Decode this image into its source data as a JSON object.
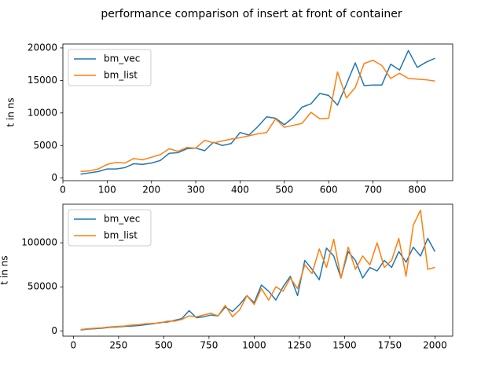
{
  "title": "performance comparison of insert at front of container",
  "chart_data": [
    {
      "type": "line",
      "y_label": "t in ns",
      "legend": "upper left",
      "x": [
        40,
        60,
        80,
        100,
        120,
        140,
        160,
        180,
        200,
        220,
        240,
        260,
        280,
        300,
        320,
        340,
        360,
        380,
        400,
        420,
        440,
        460,
        480,
        500,
        520,
        540,
        560,
        580,
        600,
        620,
        640,
        660,
        680,
        700,
        720,
        740,
        760,
        780,
        800,
        820,
        840
      ],
      "series": [
        {
          "name": "bm_vec",
          "color": "#1f77b4",
          "values": [
            600,
            800,
            1000,
            1400,
            1400,
            1600,
            2200,
            2100,
            2300,
            2700,
            3800,
            3900,
            4500,
            4600,
            4200,
            5500,
            5000,
            5300,
            7000,
            6600,
            7900,
            9400,
            9200,
            8200,
            9300,
            10900,
            11400,
            13000,
            12700,
            11200,
            14400,
            17700,
            14200,
            14300,
            14300,
            17500,
            16600,
            19600,
            17000,
            17800,
            18400
          ]
        },
        {
          "name": "bm_list",
          "color": "#ff7f0e",
          "values": [
            1000,
            1100,
            1400,
            2100,
            2400,
            2300,
            3000,
            2800,
            3200,
            3600,
            4500,
            4100,
            4700,
            4600,
            5800,
            5400,
            5700,
            6000,
            6200,
            6500,
            6800,
            7000,
            9100,
            7800,
            8100,
            8400,
            10100,
            9100,
            9200,
            16300,
            12300,
            13900,
            17600,
            18100,
            17300,
            15300,
            16100,
            15300,
            15200,
            15100,
            14900
          ]
        }
      ],
      "xlim": [
        0,
        880
      ],
      "xticks": [
        0,
        100,
        200,
        300,
        400,
        500,
        600,
        700,
        800
      ],
      "ylim": [
        -400,
        20600
      ],
      "yticks": [
        0,
        5000,
        10000,
        15000,
        20000
      ]
    },
    {
      "type": "line",
      "y_label": "t in ns",
      "legend": "upper left",
      "x": [
        40,
        80,
        120,
        160,
        200,
        240,
        280,
        320,
        360,
        400,
        440,
        480,
        520,
        560,
        600,
        640,
        680,
        720,
        760,
        800,
        840,
        880,
        920,
        960,
        1000,
        1040,
        1080,
        1120,
        1160,
        1200,
        1240,
        1280,
        1320,
        1360,
        1400,
        1440,
        1480,
        1520,
        1560,
        1600,
        1640,
        1680,
        1720,
        1760,
        1800,
        1840,
        1880,
        1920,
        1960,
        2000
      ],
      "series": [
        {
          "name": "bm_vec",
          "color": "#1f77b4",
          "values": [
            1000,
            2000,
            2500,
            3000,
            4000,
            4500,
            5000,
            5500,
            6000,
            7000,
            8000,
            9500,
            10000,
            12000,
            14000,
            23000,
            15000,
            16000,
            18000,
            17000,
            27000,
            22000,
            30000,
            40000,
            32000,
            52000,
            45000,
            35000,
            50000,
            62000,
            40000,
            80000,
            70000,
            58000,
            94000,
            85000,
            60000,
            90000,
            80000,
            60000,
            72000,
            68000,
            80000,
            72000,
            90000,
            78000,
            95000,
            85000,
            105000,
            90000
          ]
        },
        {
          "name": "bm_list",
          "color": "#ff7f0e",
          "values": [
            1500,
            2500,
            3000,
            3500,
            4500,
            5000,
            5500,
            6500,
            7000,
            8000,
            8500,
            9000,
            11000,
            11000,
            13000,
            17000,
            16000,
            18000,
            20000,
            17000,
            29000,
            16000,
            24000,
            40000,
            30000,
            48000,
            35000,
            50000,
            45000,
            60000,
            48000,
            75000,
            65000,
            93000,
            72000,
            104000,
            60000,
            95000,
            70000,
            85000,
            75000,
            100000,
            72000,
            80000,
            105000,
            62000,
            120000,
            137000,
            70000,
            72000
          ]
        }
      ],
      "xlim": [
        -58,
        2098
      ],
      "xticks": [
        0,
        250,
        500,
        750,
        1000,
        1250,
        1500,
        1750,
        2000
      ],
      "ylim": [
        -6000,
        143800
      ],
      "yticks": [
        0,
        50000,
        100000
      ]
    }
  ]
}
